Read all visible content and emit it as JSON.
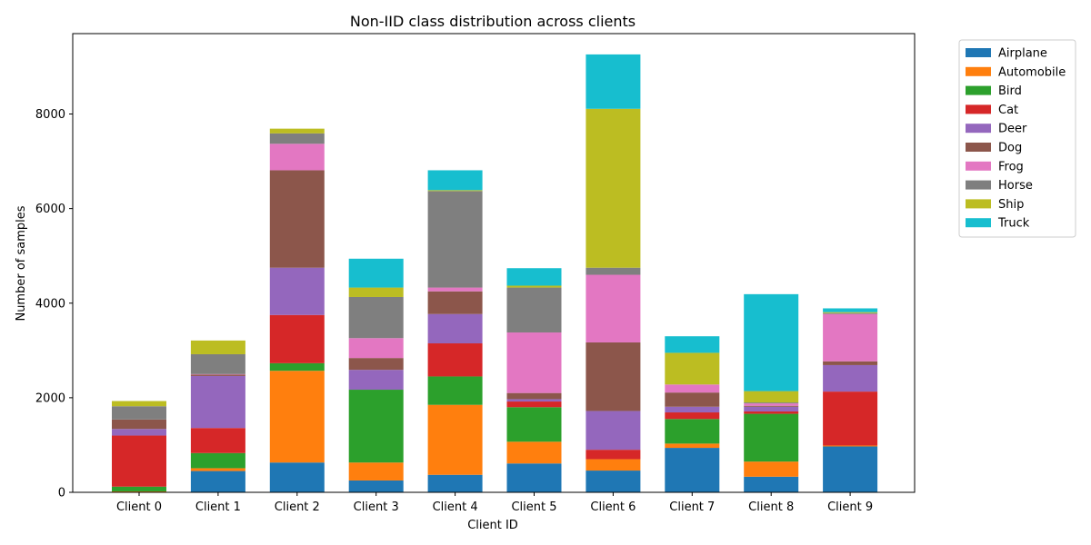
{
  "chart_data": {
    "type": "bar",
    "stacked": true,
    "title": "Non-IID class distribution across clients",
    "xlabel": "Client ID",
    "ylabel": "Number of samples",
    "ylim": [
      0,
      9700
    ],
    "yticks": [
      0,
      2000,
      4000,
      6000,
      8000
    ],
    "grid": false,
    "legend_position": "outside-top-right",
    "categories": [
      "Client 0",
      "Client 1",
      "Client 2",
      "Client 3",
      "Client 4",
      "Client 5",
      "Client 6",
      "Client 7",
      "Client 8",
      "Client 9"
    ],
    "series": [
      {
        "name": "Airplane",
        "color": "#1f77b4",
        "values": [
          10,
          450,
          630,
          250,
          370,
          610,
          460,
          940,
          330,
          970
        ]
      },
      {
        "name": "Automobile",
        "color": "#ff7f0e",
        "values": [
          10,
          60,
          1940,
          380,
          1480,
          460,
          240,
          90,
          320,
          20
        ]
      },
      {
        "name": "Bird",
        "color": "#2ca02c",
        "values": [
          100,
          320,
          160,
          1540,
          600,
          730,
          0,
          520,
          1010,
          0
        ]
      },
      {
        "name": "Cat",
        "color": "#d62728",
        "values": [
          1080,
          530,
          1020,
          0,
          700,
          120,
          200,
          140,
          50,
          1140
        ]
      },
      {
        "name": "Deer",
        "color": "#9467bd",
        "values": [
          140,
          1100,
          1000,
          420,
          620,
          50,
          820,
          120,
          100,
          560
        ]
      },
      {
        "name": "Dog",
        "color": "#8c564b",
        "values": [
          200,
          30,
          2060,
          250,
          480,
          130,
          1450,
          300,
          20,
          80
        ]
      },
      {
        "name": "Frog",
        "color": "#e377c2",
        "values": [
          0,
          10,
          560,
          420,
          80,
          1280,
          1430,
          170,
          50,
          1000
        ]
      },
      {
        "name": "Horse",
        "color": "#7f7f7f",
        "values": [
          280,
          420,
          220,
          870,
          2040,
          950,
          150,
          0,
          20,
          20
        ]
      },
      {
        "name": "Ship",
        "color": "#bcbd22",
        "values": [
          110,
          290,
          100,
          200,
          20,
          40,
          3360,
          670,
          240,
          20
        ]
      },
      {
        "name": "Truck",
        "color": "#17becf",
        "values": [
          0,
          0,
          0,
          610,
          420,
          370,
          1150,
          350,
          2050,
          80
        ]
      }
    ]
  }
}
